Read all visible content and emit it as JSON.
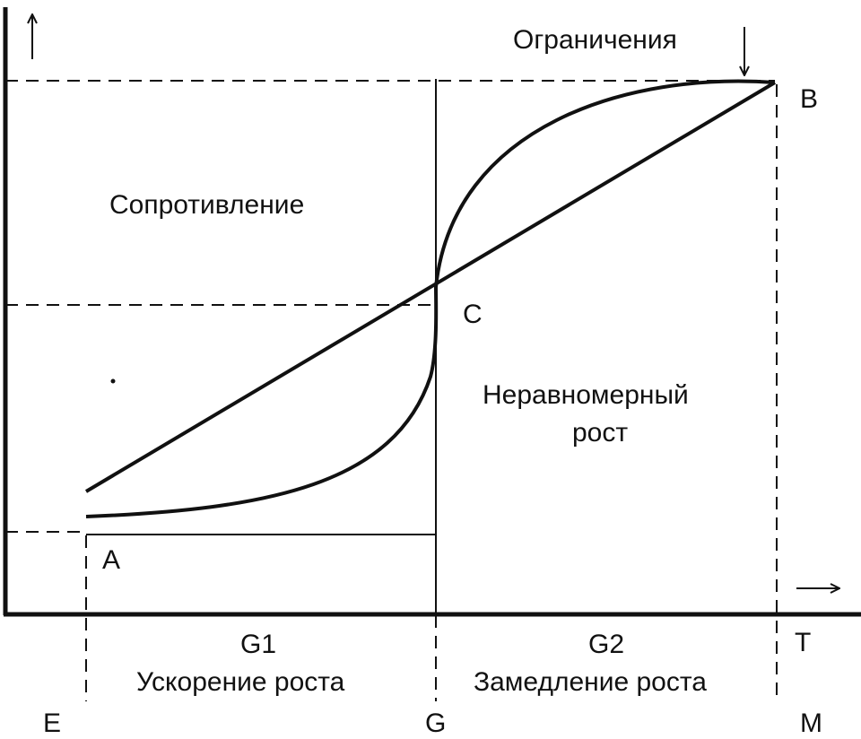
{
  "diagram": {
    "labels": {
      "constraints": "Ограничения",
      "resistance": "Сопротивление",
      "uneven_growth_line1": "Неравномерный",
      "uneven_growth_line2": "рост",
      "g1": "G1",
      "acceleration": "Ускорение роста",
      "g2": "G2",
      "deceleration": "Замедление роста",
      "point_a": "A",
      "point_b": "B",
      "point_c": "C",
      "point_e": "E",
      "point_g": "G",
      "point_m": "M",
      "point_t": "T"
    },
    "colors": {
      "ink": "#111111",
      "background": "#ffffff"
    }
  }
}
